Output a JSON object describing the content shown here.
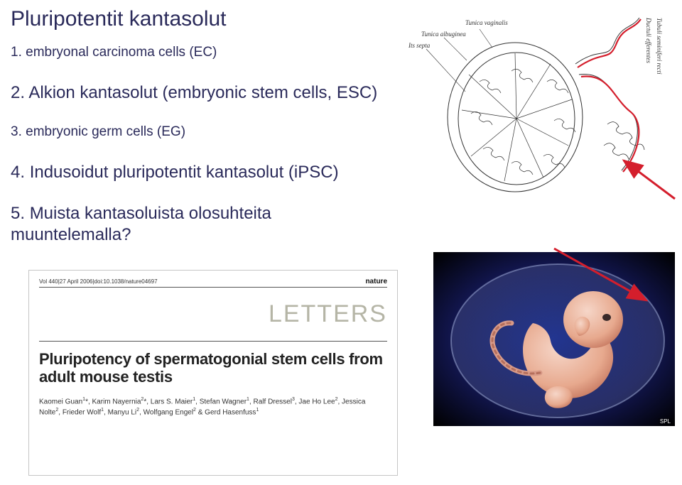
{
  "colors": {
    "text_primary": "#2a2a5a",
    "background": "#ffffff",
    "paper_section_gray": "#b5b5a6",
    "arrow_red": "#d41e2c",
    "diagram_line": "#333333"
  },
  "title": "Pluripotentit kantasolut",
  "list": {
    "items": [
      {
        "num": "1.",
        "text": "embryonal carcinoma cells (EC)"
      },
      {
        "num": "2.",
        "text": "Alkion kantasolut (embryonic stem cells, ESC)"
      },
      {
        "num": "3.",
        "text": "embryonic germ cells (EG)"
      },
      {
        "num": "4.",
        "text": "Indusoidut pluripotentit kantasolut (iPSC)"
      },
      {
        "num": "5.",
        "text": "Muista kantasoluista olosuhteita muuntelemalla?"
      }
    ]
  },
  "diagram": {
    "labels": {
      "tunica_vaginalis": "Tunica vaginalis",
      "tunica_albuginea": "Tunica albuginea",
      "its_septa": "Its septa",
      "ductuli": "Ductuli efferentes",
      "tubuli": "Tubuli seminiferi recti"
    }
  },
  "paper": {
    "meta": "Vol 440|27 April 2006|doi:10.1038/nature04697",
    "journal": "nature",
    "section": "LETTERS",
    "title_line1": "Pluripotency of spermatogonial stem cells from",
    "title_line2": "adult mouse testis",
    "authors_html": "Kaomei Guan<sup>1</sup>*, Karim Nayernia<sup>2</sup>*, Lars S. Maier<sup>1</sup>, Stefan Wagner<sup>1</sup>, Ralf Dressel<sup>3</sup>, Jae Ho Lee<sup>2</sup>, Jessica Nolte<sup>2</sup>, Frieder Wolf<sup>1</sup>, Manyu Li<sup>2</sup>, Wolfgang Engel<sup>2</sup> & Gerd Hasenfuss<sup>1</sup>"
  },
  "photo": {
    "credit": "SPL"
  }
}
